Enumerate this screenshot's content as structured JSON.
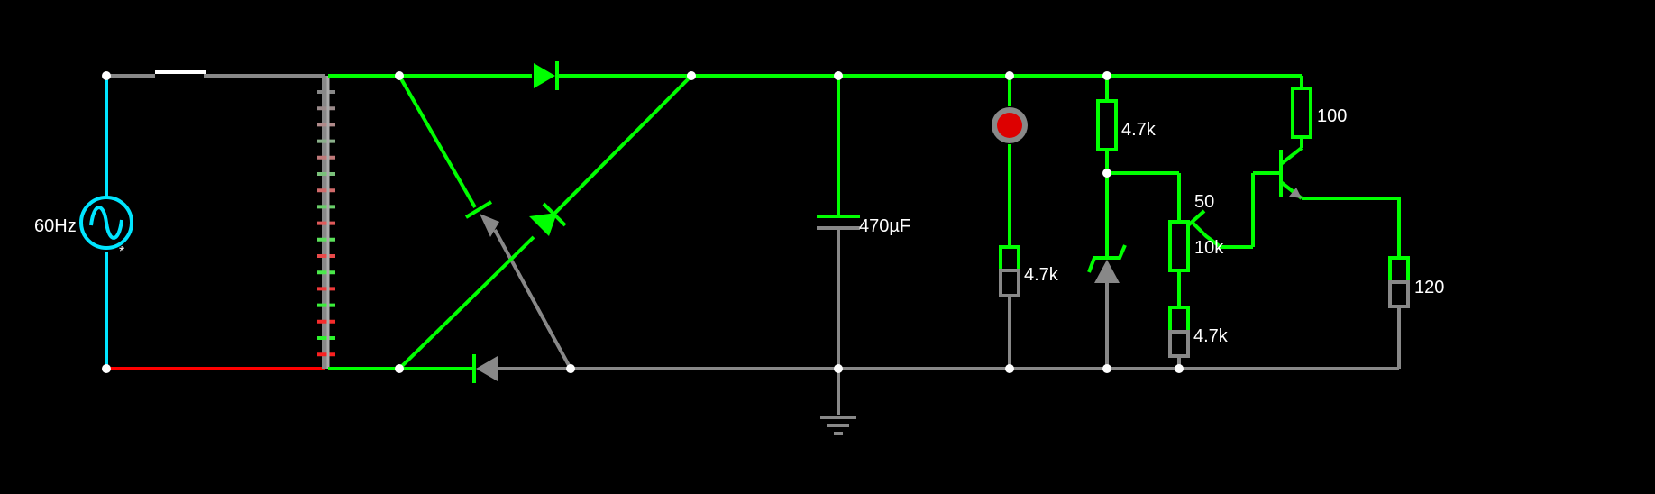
{
  "colors": {
    "background": "#000000",
    "live": "#00ff00",
    "ground": "#888888",
    "source": "#00e5ff",
    "red_wire": "#ff0000",
    "switch": "#ffffff",
    "lamp": "#dd0000",
    "label": "#ffffff"
  },
  "labels": {
    "source_freq": "60Hz",
    "source_mark": "*",
    "capacitor": "470µF",
    "lamp_resistor": "4.7k",
    "zener_resistor": "4.7k",
    "pot_top": "50",
    "pot_value": "10k",
    "pot_bottom_resistor": "4.7k",
    "collector_resistor": "100",
    "emitter_resistor": "120"
  },
  "components": {
    "source": "ac-voltage-source",
    "switch": "switch",
    "transformer": "transformer",
    "bridge": "bridge-rectifier",
    "capacitor": "capacitor",
    "lamp": "lamp",
    "zener": "zener-diode",
    "potentiometer": "potentiometer",
    "transistor": "npn-transistor",
    "ground": "ground-symbol"
  }
}
